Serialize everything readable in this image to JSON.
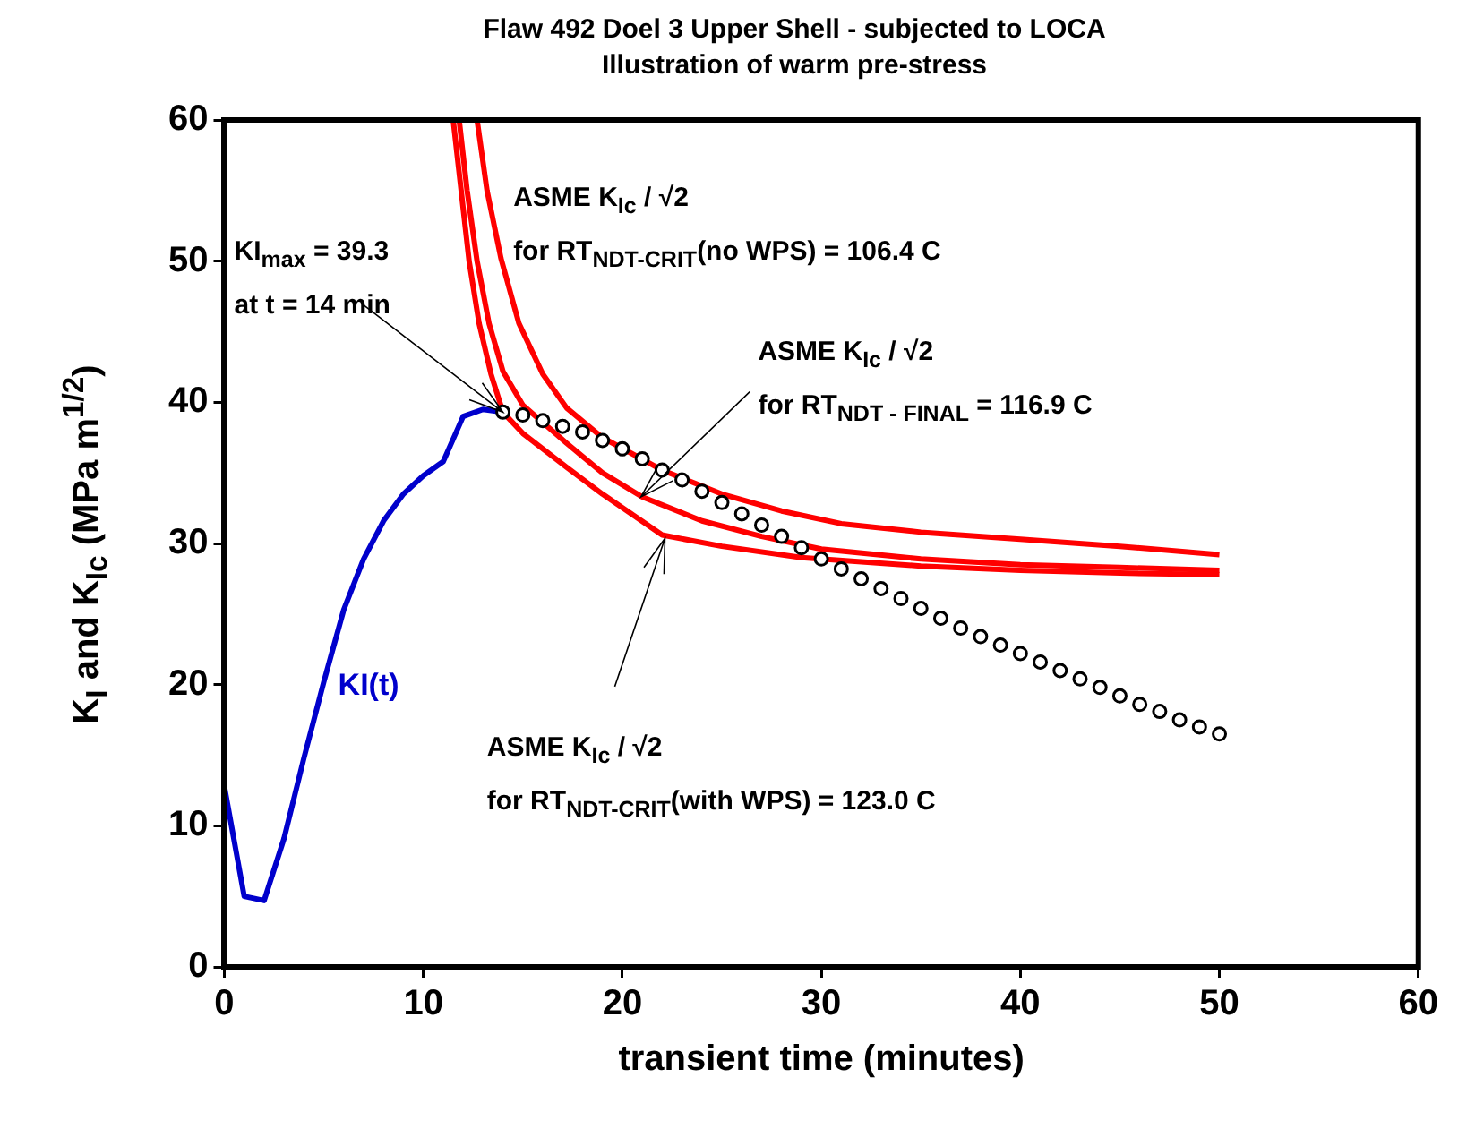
{
  "chart_data": {
    "type": "line",
    "title": "Flaw 492 Doel 3 Upper Shell - subjected to LOCA",
    "subtitle": "Illustration of warm pre-stress",
    "xlabel": "transient time (minutes)",
    "ylabel": "K$_{I}$ and K$_{Ic}$ (MPa m$^{1/2}$)",
    "xlim": [
      0,
      60
    ],
    "xticks": [
      0,
      10,
      20,
      30,
      40,
      50,
      60
    ],
    "ylim": [
      0,
      60
    ],
    "yticks": [
      0,
      10,
      20,
      30,
      40,
      50,
      60
    ],
    "grid": false,
    "legend": false,
    "series": [
      {
        "name": "KI(t)",
        "marker": "none",
        "color": "#0000cc",
        "x": [
          0,
          1,
          2,
          3,
          4,
          5,
          6,
          7,
          8,
          9,
          10,
          11,
          12,
          13,
          14
        ],
        "values": [
          12.8,
          5,
          4.7,
          9.1,
          14.8,
          20.2,
          25.3,
          28.9,
          31.6,
          33.5,
          34.8,
          35.8,
          39,
          39.5,
          39.3
        ]
      },
      {
        "type": "scatter",
        "marker": "circle",
        "color": "#000000",
        "x": [
          14,
          15,
          16,
          17,
          18,
          19,
          20,
          21,
          22,
          23,
          24,
          25,
          26,
          27,
          28,
          29,
          30,
          31,
          32,
          33,
          34,
          35,
          36,
          37,
          38,
          39,
          40,
          41,
          42,
          43,
          44,
          45,
          46,
          47,
          48,
          49,
          50
        ],
        "values": [
          39.3,
          39.1,
          38.7,
          38.3,
          37.9,
          37.3,
          36.7,
          36,
          35.2,
          34.5,
          33.7,
          32.9,
          32.1,
          31.3,
          30.5,
          29.7,
          28.9,
          28.2,
          27.5,
          26.8,
          26.1,
          25.4,
          24.7,
          24,
          23.4,
          22.8,
          22.2,
          21.6,
          21,
          20.4,
          19.8,
          19.2,
          18.6,
          18.1,
          17.5,
          17,
          16.5
        ]
      },
      {
        "marker": "none",
        "color": "#ff0000",
        "x": [
          12.7,
          13.2,
          13.9,
          14.8,
          16,
          17.2,
          19,
          22,
          25,
          28,
          31,
          35,
          40,
          45,
          50
        ],
        "values": [
          60,
          55,
          50.2,
          45.6,
          42,
          39.6,
          37.5,
          35.2,
          33.5,
          32.3,
          31.4,
          30.8,
          30.3,
          29.8,
          29.2
        ]
      },
      {
        "marker": "none",
        "color": "#ff0000",
        "x": [
          11.8,
          12.2,
          12.7,
          13.3,
          14,
          15,
          17.2,
          19,
          21,
          24,
          27,
          30,
          35,
          40,
          45,
          50
        ],
        "values": [
          60,
          55,
          50,
          45.6,
          42.2,
          39.8,
          37.1,
          35,
          33.3,
          31.6,
          30.5,
          29.6,
          28.9,
          28.5,
          28.3,
          28.1
        ]
      },
      {
        "marker": "none",
        "color": "#ff0000",
        "x": [
          11.5,
          11.9,
          12.3,
          12.8,
          13.4,
          14,
          15,
          17.2,
          19,
          22,
          25,
          29,
          35,
          40,
          45,
          50
        ],
        "values": [
          60,
          55,
          50,
          45.6,
          42,
          39.3,
          37.8,
          35.4,
          33.5,
          30.6,
          29.8,
          29,
          28.4,
          28.1,
          27.9,
          27.8
        ]
      }
    ],
    "annotations": [
      {
        "text": "KI$_{max}$ = 39.3\nat t = 14 min",
        "x": 14,
        "y": 39.3
      },
      "ASME K$_{Ic}$ / √2\nfor RT$_{NDT-CRIT}$(no WPS) = 106.4 C",
      "ASME K$_{Ic}$ / √2\nfor RT$_{NDT - FINAL}$ = 116.9 C",
      "ASME K$_{Ic}$ / √2\nfor RT$_{NDT-CRIT}$(with WPS) = 123.0 C"
    ]
  }
}
